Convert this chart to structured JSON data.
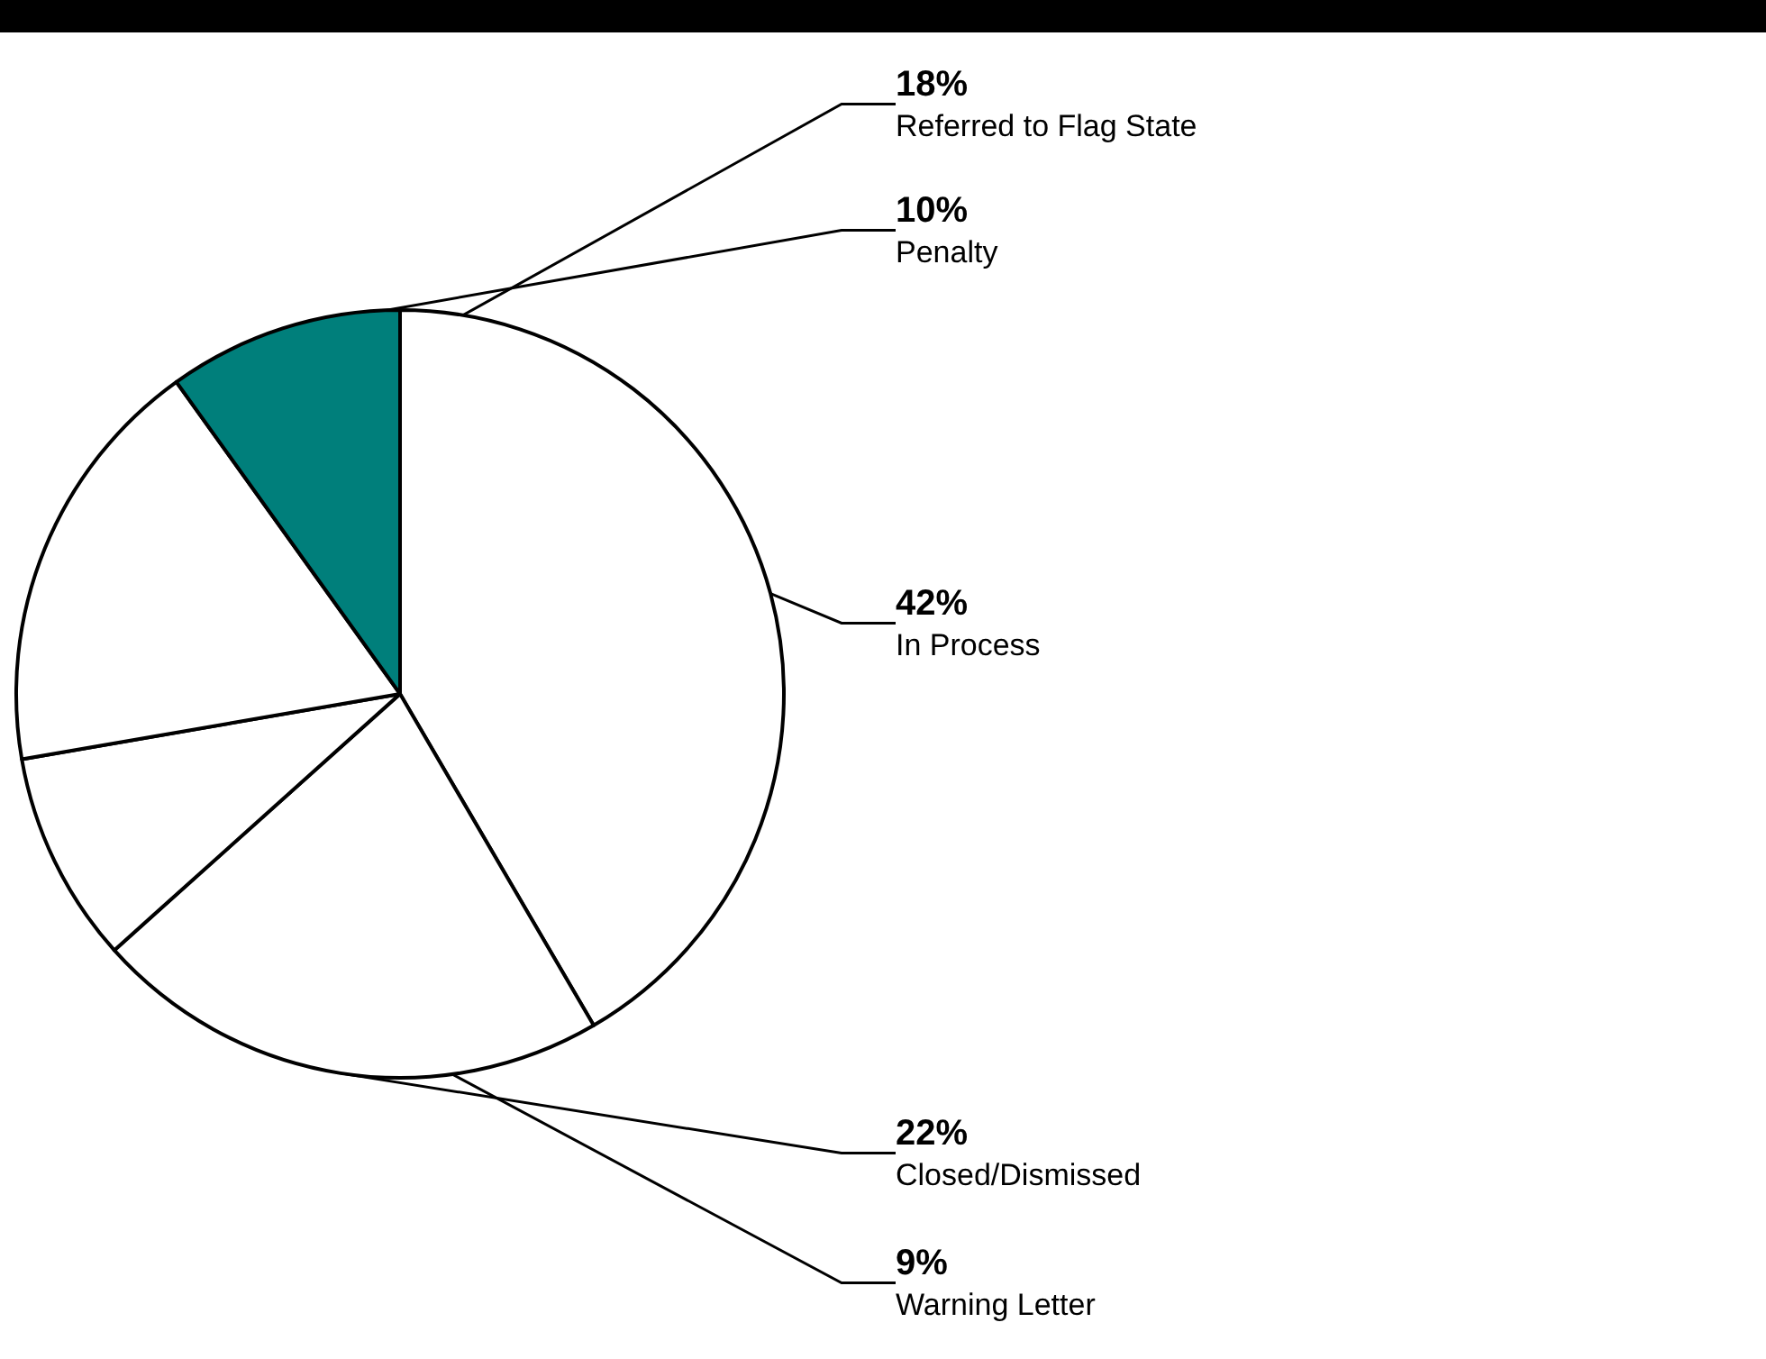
{
  "chart_data": {
    "type": "pie",
    "categories": [
      "In Process",
      "Closed/Dismissed",
      "Warning Letter",
      "Referred to Flag State",
      "Penalty"
    ],
    "values": [
      42,
      22,
      9,
      18,
      10
    ],
    "colors": [
      "#ffffff",
      "#ffffff",
      "#ffffff",
      "#ffffff",
      "#007f7b"
    ],
    "value_labels": [
      "42%",
      "22%",
      "9%",
      "18%",
      "10%"
    ],
    "legend": false
  }
}
